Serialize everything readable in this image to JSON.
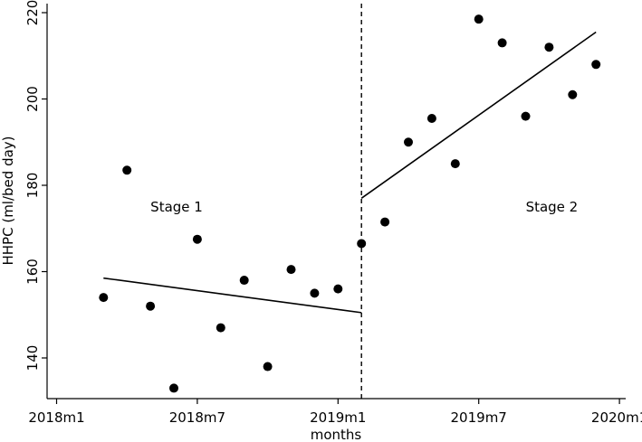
{
  "chart_data": {
    "type": "scatter",
    "xlabel": "months",
    "ylabel": "HHPC (ml/bed day)",
    "x_ticks": [
      {
        "month": "2018-01",
        "label": "2018m1"
      },
      {
        "month": "2018-07",
        "label": "2018m7"
      },
      {
        "month": "2019-01",
        "label": "2019m1"
      },
      {
        "month": "2019-07",
        "label": "2019m7"
      },
      {
        "month": "2020-01",
        "label": "2020m1"
      }
    ],
    "y_ticks": [
      140,
      160,
      180,
      200,
      220
    ],
    "xlim": [
      "2018-01",
      "2020-01"
    ],
    "ylim": [
      130,
      222
    ],
    "grid": false,
    "legend": "none",
    "intervention_month": "2019-02",
    "points": [
      {
        "month": "2018-03",
        "value": 154
      },
      {
        "month": "2018-04",
        "value": 183.5
      },
      {
        "month": "2018-05",
        "value": 152
      },
      {
        "month": "2018-06",
        "value": 133
      },
      {
        "month": "2018-07",
        "value": 167.5
      },
      {
        "month": "2018-08",
        "value": 147
      },
      {
        "month": "2018-09",
        "value": 158
      },
      {
        "month": "2018-10",
        "value": 138
      },
      {
        "month": "2018-11",
        "value": 160.5
      },
      {
        "month": "2018-12",
        "value": 155
      },
      {
        "month": "2019-01",
        "value": 156
      },
      {
        "month": "2019-02",
        "value": 166.5
      },
      {
        "month": "2019-03",
        "value": 171.5
      },
      {
        "month": "2019-04",
        "value": 190
      },
      {
        "month": "2019-05",
        "value": 195.5
      },
      {
        "month": "2019-06",
        "value": 185
      },
      {
        "month": "2019-07",
        "value": 218.5
      },
      {
        "month": "2019-08",
        "value": 213
      },
      {
        "month": "2019-09",
        "value": 196
      },
      {
        "month": "2019-10",
        "value": 212
      },
      {
        "month": "2019-11",
        "value": 201
      },
      {
        "month": "2019-12",
        "value": 208
      }
    ],
    "trend_lines": [
      {
        "name": "stage-1-fit",
        "from": {
          "month": "2018-03",
          "value": 158.5
        },
        "to": {
          "month": "2019-02",
          "value": 150.5
        }
      },
      {
        "name": "stage-2-fit",
        "from": {
          "month": "2019-02",
          "value": 177
        },
        "to": {
          "month": "2019-12",
          "value": 215.5
        }
      }
    ],
    "annotations": [
      {
        "text": "Stage 1",
        "month": "2018-06",
        "value": 175
      },
      {
        "text": "Stage 2",
        "month": "2019-10",
        "value": 175
      }
    ]
  }
}
